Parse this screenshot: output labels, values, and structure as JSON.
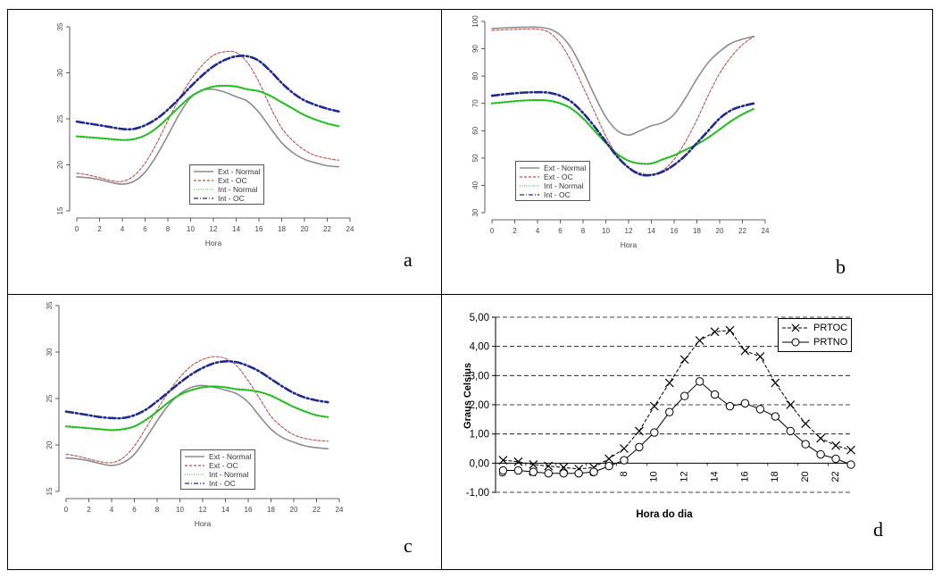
{
  "figure": {
    "panels": [
      {
        "id": "a",
        "letter": "a",
        "xlabel": "Hora",
        "yticks": [
          "15",
          "20",
          "25",
          "30",
          "35"
        ],
        "xticks": [
          "0",
          "2",
          "4",
          "6",
          "8",
          "10",
          "12",
          "14",
          "16",
          "18",
          "20",
          "22",
          "24"
        ],
        "legend": [
          "Ext - Normal",
          "Ext - OC",
          "Int - Normal",
          "Int - OC"
        ]
      },
      {
        "id": "b",
        "letter": "b",
        "xlabel": "Hora",
        "yticks": [
          "30",
          "40",
          "50",
          "60",
          "70",
          "80",
          "90",
          "100"
        ],
        "xticks": [
          "0",
          "2",
          "4",
          "6",
          "8",
          "10",
          "12",
          "14",
          "16",
          "18",
          "20",
          "22",
          "24"
        ],
        "legend": [
          "Ext - Normal",
          "Ext - OC",
          "Int - Normal",
          "Int - OC"
        ]
      },
      {
        "id": "c",
        "letter": "c",
        "xlabel": "Hora",
        "yticks": [
          "15",
          "20",
          "25",
          "30",
          "35"
        ],
        "xticks": [
          "0",
          "2",
          "4",
          "6",
          "8",
          "10",
          "12",
          "14",
          "16",
          "18",
          "20",
          "22",
          "24"
        ],
        "legend": [
          "Ext - Normal",
          "Ext - OC",
          "Int - Normal",
          "Int - OC"
        ]
      },
      {
        "id": "d",
        "letter": "d",
        "xlabel": "Hora do dia",
        "ylabel": "Graus Celsius",
        "yticks": [
          "-1,00",
          "0,00",
          "1,00",
          "2,00",
          "3,00",
          "4,00",
          "5,00"
        ],
        "xticks": [
          "0",
          "2",
          "4",
          "6",
          "8",
          "10",
          "12",
          "14",
          "16",
          "18",
          "20",
          "22"
        ],
        "legend": [
          "PRTOC",
          "PRTNO"
        ]
      }
    ]
  },
  "colors": {
    "ext_normal": "#8c8c8c",
    "ext_oc": "#c0504d",
    "int_normal": "#22bb22",
    "int_oc": "#1f2a8c",
    "axis": "#333333",
    "black": "#000000"
  },
  "chart_data": [
    {
      "type": "line",
      "title": "a",
      "xlabel": "Hora",
      "ylabel": "",
      "xlim": [
        0,
        24
      ],
      "ylim": [
        15,
        35
      ],
      "x": [
        0,
        1,
        2,
        3,
        4,
        5,
        6,
        7,
        8,
        9,
        10,
        11,
        12,
        13,
        14,
        15,
        16,
        17,
        18,
        19,
        20,
        21,
        22,
        23
      ],
      "series": [
        {
          "name": "Ext - Normal",
          "values": [
            18.7,
            18.6,
            18.4,
            18.1,
            17.9,
            18.2,
            19.2,
            21.0,
            23.2,
            25.5,
            27.3,
            28.1,
            28.2,
            27.9,
            27.4,
            26.9,
            25.7,
            24.0,
            22.4,
            21.3,
            20.6,
            20.2,
            19.9,
            19.8
          ]
        },
        {
          "name": "Ext - OC",
          "values": [
            19.1,
            18.9,
            18.6,
            18.3,
            18.2,
            18.8,
            20.2,
            22.3,
            24.8,
            27.2,
            29.2,
            30.8,
            31.9,
            32.3,
            32.2,
            31.1,
            29.0,
            26.3,
            24.0,
            22.6,
            21.6,
            21.0,
            20.7,
            20.5
          ]
        },
        {
          "name": "Int - Normal",
          "values": [
            23.1,
            23.0,
            22.9,
            22.8,
            22.7,
            22.8,
            23.2,
            24.0,
            25.1,
            26.3,
            27.4,
            28.1,
            28.5,
            28.6,
            28.5,
            28.2,
            28.0,
            27.5,
            26.8,
            26.1,
            25.4,
            24.9,
            24.5,
            24.2
          ]
        },
        {
          "name": "Int - OC",
          "values": [
            24.7,
            24.5,
            24.3,
            24.1,
            23.9,
            23.9,
            24.3,
            25.0,
            26.0,
            27.2,
            28.5,
            29.7,
            30.7,
            31.4,
            31.8,
            31.8,
            31.3,
            30.2,
            28.9,
            27.8,
            27.0,
            26.5,
            26.1,
            25.8
          ]
        }
      ]
    },
    {
      "type": "line",
      "title": "b",
      "xlabel": "Hora",
      "ylabel": "",
      "xlim": [
        0,
        24
      ],
      "ylim": [
        30,
        100
      ],
      "x": [
        0,
        1,
        2,
        3,
        4,
        5,
        6,
        7,
        8,
        9,
        10,
        11,
        12,
        13,
        14,
        15,
        16,
        17,
        18,
        19,
        20,
        21,
        22,
        23
      ],
      "series": [
        {
          "name": "Ext - Normal",
          "values": [
            97.4,
            97.6,
            97.8,
            97.9,
            97.9,
            97.3,
            95.0,
            90.0,
            82.0,
            73.0,
            65.0,
            60.0,
            58.4,
            60.0,
            61.8,
            63.0,
            66.0,
            72.0,
            79.0,
            85.0,
            89.0,
            92.0,
            93.5,
            94.5
          ]
        },
        {
          "name": "Ext - OC",
          "values": [
            96.7,
            96.9,
            97.1,
            97.2,
            97.2,
            96.0,
            92.0,
            85.0,
            76.0,
            67.0,
            58.0,
            51.0,
            46.5,
            44.5,
            44.0,
            45.5,
            49.5,
            56.0,
            64.0,
            73.0,
            81.0,
            87.0,
            91.5,
            94.5
          ]
        },
        {
          "name": "Int - Normal",
          "values": [
            70.0,
            70.4,
            70.8,
            71.1,
            71.2,
            71.0,
            70.0,
            68.0,
            64.5,
            60.0,
            55.5,
            51.5,
            49.0,
            48.0,
            48.0,
            49.5,
            51.0,
            53.0,
            55.0,
            57.5,
            60.5,
            63.5,
            66.0,
            68.0
          ]
        },
        {
          "name": "Int - OC",
          "values": [
            72.8,
            73.3,
            73.7,
            74.0,
            74.1,
            73.9,
            72.8,
            70.5,
            66.5,
            61.5,
            56.0,
            50.5,
            46.5,
            44.0,
            43.8,
            45.0,
            47.5,
            51.0,
            55.5,
            60.0,
            64.5,
            67.5,
            69.0,
            70.0
          ]
        }
      ]
    },
    {
      "type": "line",
      "title": "c",
      "xlabel": "Hora",
      "ylabel": "",
      "xlim": [
        0,
        24
      ],
      "ylim": [
        15,
        35
      ],
      "x": [
        0,
        1,
        2,
        3,
        4,
        5,
        6,
        7,
        8,
        9,
        10,
        11,
        12,
        13,
        14,
        15,
        16,
        17,
        18,
        19,
        20,
        21,
        22,
        23
      ],
      "series": [
        {
          "name": "Ext - Normal",
          "values": [
            18.6,
            18.5,
            18.3,
            18.0,
            17.8,
            18.1,
            19.0,
            20.7,
            22.6,
            24.3,
            25.5,
            26.2,
            26.4,
            26.2,
            25.9,
            25.5,
            24.6,
            23.1,
            21.7,
            20.8,
            20.3,
            19.9,
            19.7,
            19.6
          ]
        },
        {
          "name": "Ext - OC",
          "values": [
            19.0,
            18.8,
            18.5,
            18.2,
            18.1,
            18.6,
            19.9,
            21.8,
            23.8,
            25.7,
            27.3,
            28.5,
            29.2,
            29.5,
            29.3,
            28.5,
            26.9,
            25.0,
            23.1,
            21.9,
            21.1,
            20.7,
            20.5,
            20.4
          ]
        },
        {
          "name": "Int - Normal",
          "values": [
            22.0,
            21.9,
            21.8,
            21.7,
            21.6,
            21.7,
            22.0,
            22.7,
            23.6,
            24.6,
            25.4,
            25.9,
            26.2,
            26.3,
            26.2,
            26.0,
            25.9,
            25.7,
            25.3,
            24.7,
            24.1,
            23.6,
            23.2,
            23.0
          ]
        },
        {
          "name": "Int - OC",
          "values": [
            23.6,
            23.4,
            23.2,
            23.0,
            22.9,
            22.9,
            23.2,
            23.8,
            24.7,
            25.7,
            26.7,
            27.6,
            28.3,
            28.8,
            29.0,
            28.9,
            28.5,
            27.9,
            27.1,
            26.3,
            25.6,
            25.1,
            24.8,
            24.6
          ]
        }
      ]
    },
    {
      "type": "line",
      "title": "d",
      "xlabel": "Hora do dia",
      "ylabel": "Graus Celsius",
      "xlim": [
        0,
        23.5
      ],
      "ylim": [
        -1,
        5
      ],
      "grid": true,
      "x": [
        0,
        1,
        2,
        3,
        4,
        5,
        6,
        7,
        8,
        9,
        10,
        11,
        12,
        13,
        14,
        15,
        16,
        17,
        18,
        19,
        20,
        21,
        22,
        23
      ],
      "series": [
        {
          "name": "PRTOC",
          "marker": "x",
          "values": [
            0.1,
            0.05,
            -0.05,
            -0.1,
            -0.15,
            -0.2,
            -0.15,
            0.15,
            0.5,
            1.1,
            1.95,
            2.75,
            3.55,
            4.2,
            4.5,
            4.55,
            3.85,
            3.65,
            2.75,
            2.0,
            1.35,
            0.85,
            0.6,
            0.45
          ]
        },
        {
          "name": "PRTNO",
          "marker": "o",
          "values": [
            -0.25,
            -0.25,
            -0.3,
            -0.35,
            -0.35,
            -0.35,
            -0.3,
            -0.1,
            0.1,
            0.55,
            1.05,
            1.75,
            2.3,
            2.8,
            2.35,
            1.95,
            2.05,
            1.85,
            1.6,
            1.1,
            0.65,
            0.3,
            0.15,
            -0.05
          ]
        }
      ]
    }
  ]
}
